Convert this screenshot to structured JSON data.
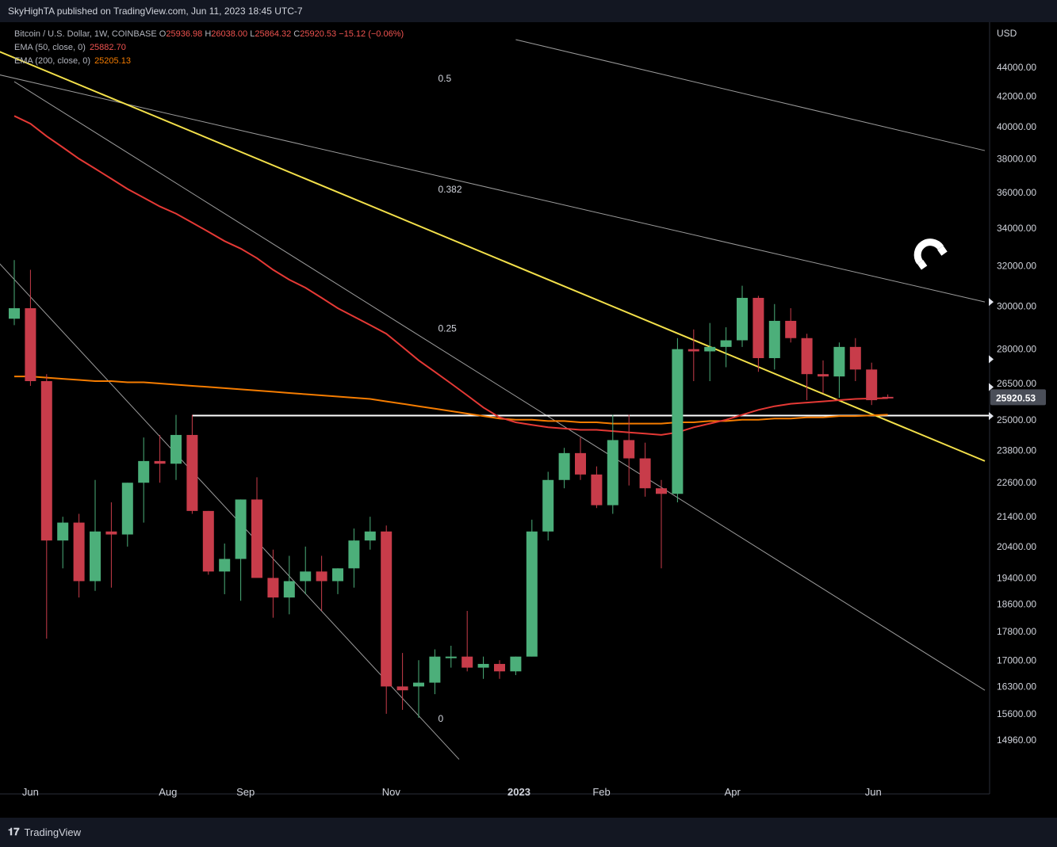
{
  "header": {
    "publisher_line": "SkyHighTA published on TradingView.com, Jun 11, 2023 18:45 UTC-7"
  },
  "legend": {
    "symbol": "Bitcoin / U.S. Dollar, 1W, COINBASE",
    "open_label": "O",
    "open": "25936.98",
    "high_label": "H",
    "high": "26038.00",
    "low_label": "L",
    "low": "25864.32",
    "close_label": "C",
    "close": "25920.53",
    "change": "−15.12 (−0.06%)",
    "ema50_label": "EMA (50, close, 0)",
    "ema50_value": "25882.70",
    "ema200_label": "EMA (200, close, 0)",
    "ema200_value": "25205.13"
  },
  "footer": {
    "brand": "TradingView",
    "logo_icon": "tradingview-logo-icon"
  },
  "colors": {
    "up": "#4caf7a",
    "down": "#c83c4a",
    "ema50": "#e53935",
    "ema200": "#f57c00",
    "trend": "#f3e04a",
    "grid_line": "#cfcfcf",
    "support": "#ffffff"
  },
  "chart_data": {
    "type": "candlestick",
    "currency": "USD",
    "y_scale": "log",
    "ylim": [
      14500,
      45500
    ],
    "y_ticks": [
      "44000.00",
      "42000.00",
      "40000.00",
      "38000.00",
      "36000.00",
      "34000.00",
      "32000.00",
      "30000.00",
      "28000.00",
      "26500.00",
      "25000.00",
      "23800.00",
      "22600.00",
      "21400.00",
      "20400.00",
      "19400.00",
      "18600.00",
      "17800.00",
      "17000.00",
      "16300.00",
      "15600.00",
      "14960.00"
    ],
    "y_tick_values": [
      44000,
      42000,
      40000,
      38000,
      36000,
      34000,
      32000,
      30000,
      28000,
      26500,
      25000,
      23800,
      22600,
      21400,
      20400,
      19400,
      18600,
      17800,
      17000,
      16300,
      15600,
      14960
    ],
    "x_ticks": [
      {
        "label": "Jun",
        "index": 1
      },
      {
        "label": "Aug",
        "index": 9.5
      },
      {
        "label": "Sep",
        "index": 14.3
      },
      {
        "label": "Nov",
        "index": 23.3
      },
      {
        "label": "2023",
        "index": 31.2,
        "bold": true
      },
      {
        "label": "Feb",
        "index": 36.3
      },
      {
        "label": "Apr",
        "index": 44.4
      },
      {
        "label": "Jun",
        "index": 53.1
      }
    ],
    "candles": [
      {
        "o": 29400,
        "h": 32300,
        "l": 29100,
        "c": 29900
      },
      {
        "o": 29900,
        "h": 31800,
        "l": 26400,
        "c": 26600
      },
      {
        "o": 26600,
        "h": 26900,
        "l": 17600,
        "c": 20600
      },
      {
        "o": 20600,
        "h": 21400,
        "l": 19700,
        "c": 21200
      },
      {
        "o": 21200,
        "h": 21500,
        "l": 18800,
        "c": 19300
      },
      {
        "o": 19300,
        "h": 22700,
        "l": 19000,
        "c": 20900
      },
      {
        "o": 20900,
        "h": 21900,
        "l": 19100,
        "c": 20800
      },
      {
        "o": 20800,
        "h": 22600,
        "l": 20400,
        "c": 22600
      },
      {
        "o": 22600,
        "h": 24300,
        "l": 21200,
        "c": 23400
      },
      {
        "o": 23400,
        "h": 24400,
        "l": 22600,
        "c": 23300
      },
      {
        "o": 23300,
        "h": 25200,
        "l": 22700,
        "c": 24400
      },
      {
        "o": 24400,
        "h": 25200,
        "l": 21500,
        "c": 21600
      },
      {
        "o": 21600,
        "h": 21600,
        "l": 19500,
        "c": 19600
      },
      {
        "o": 19600,
        "h": 20500,
        "l": 18900,
        "c": 20000
      },
      {
        "o": 20000,
        "h": 22000,
        "l": 18700,
        "c": 22000
      },
      {
        "o": 22000,
        "h": 22800,
        "l": 19500,
        "c": 19400
      },
      {
        "o": 19400,
        "h": 20300,
        "l": 18200,
        "c": 18800
      },
      {
        "o": 18800,
        "h": 20100,
        "l": 18300,
        "c": 19300
      },
      {
        "o": 19300,
        "h": 20400,
        "l": 18900,
        "c": 19600
      },
      {
        "o": 19600,
        "h": 20100,
        "l": 18400,
        "c": 19300
      },
      {
        "o": 19300,
        "h": 19700,
        "l": 18900,
        "c": 19700
      },
      {
        "o": 19700,
        "h": 21000,
        "l": 19100,
        "c": 20600
      },
      {
        "o": 20600,
        "h": 21400,
        "l": 20300,
        "c": 20900
      },
      {
        "o": 20900,
        "h": 21100,
        "l": 15600,
        "c": 16300
      },
      {
        "o": 16300,
        "h": 17200,
        "l": 15700,
        "c": 16200
      },
      {
        "o": 16300,
        "h": 17000,
        "l": 15500,
        "c": 16400
      },
      {
        "o": 16400,
        "h": 17300,
        "l": 16100,
        "c": 17100
      },
      {
        "o": 17100,
        "h": 17400,
        "l": 16800,
        "c": 17100
      },
      {
        "o": 17100,
        "h": 18400,
        "l": 16700,
        "c": 16800
      },
      {
        "o": 16800,
        "h": 17100,
        "l": 16500,
        "c": 16900
      },
      {
        "o": 16900,
        "h": 17000,
        "l": 16500,
        "c": 16700
      },
      {
        "o": 16700,
        "h": 17100,
        "l": 16600,
        "c": 17100
      },
      {
        "o": 17100,
        "h": 21300,
        "l": 17100,
        "c": 20900
      },
      {
        "o": 20900,
        "h": 23000,
        "l": 20600,
        "c": 22700
      },
      {
        "o": 22700,
        "h": 23900,
        "l": 22400,
        "c": 23700
      },
      {
        "o": 23700,
        "h": 24300,
        "l": 22700,
        "c": 22900
      },
      {
        "o": 22900,
        "h": 23200,
        "l": 21700,
        "c": 21800
      },
      {
        "o": 21800,
        "h": 25200,
        "l": 21500,
        "c": 24200
      },
      {
        "o": 24200,
        "h": 25200,
        "l": 22500,
        "c": 23500
      },
      {
        "o": 23500,
        "h": 24100,
        "l": 22100,
        "c": 22400
      },
      {
        "o": 22400,
        "h": 22700,
        "l": 19700,
        "c": 22200
      },
      {
        "o": 22200,
        "h": 28500,
        "l": 21900,
        "c": 28000
      },
      {
        "o": 28000,
        "h": 28900,
        "l": 26600,
        "c": 27900
      },
      {
        "o": 27900,
        "h": 29200,
        "l": 26600,
        "c": 28100
      },
      {
        "o": 28100,
        "h": 29000,
        "l": 27200,
        "c": 28400
      },
      {
        "o": 28400,
        "h": 31000,
        "l": 28100,
        "c": 30400
      },
      {
        "o": 30400,
        "h": 30500,
        "l": 27000,
        "c": 27600
      },
      {
        "o": 27600,
        "h": 30100,
        "l": 27100,
        "c": 29300
      },
      {
        "o": 29300,
        "h": 29900,
        "l": 28300,
        "c": 28500
      },
      {
        "o": 28500,
        "h": 28700,
        "l": 25800,
        "c": 26900
      },
      {
        "o": 26900,
        "h": 27500,
        "l": 26100,
        "c": 26800
      },
      {
        "o": 26800,
        "h": 28300,
        "l": 25900,
        "c": 28100
      },
      {
        "o": 28100,
        "h": 28500,
        "l": 26600,
        "c": 27100
      },
      {
        "o": 27100,
        "h": 27400,
        "l": 25600,
        "c": 25800
      },
      {
        "o": 25937,
        "h": 26038,
        "l": 25864,
        "c": 25921
      }
    ],
    "ema50": [
      40700,
      40200,
      39400,
      38700,
      38000,
      37400,
      36800,
      36200,
      35700,
      35200,
      34800,
      34300,
      33800,
      33300,
      32900,
      32400,
      31800,
      31300,
      30900,
      30400,
      29900,
      29500,
      29100,
      28700,
      28100,
      27500,
      27000,
      26500,
      26000,
      25500,
      25100,
      24900,
      24800,
      24700,
      24650,
      24600,
      24600,
      24550,
      24500,
      24450,
      24400,
      24500,
      24700,
      24850,
      25000,
      25200,
      25400,
      25550,
      25650,
      25700,
      25750,
      25800,
      25850,
      25870,
      25882.7
    ],
    "ema200": [
      26800,
      26800,
      26750,
      26700,
      26650,
      26600,
      26600,
      26550,
      26550,
      26500,
      26450,
      26400,
      26350,
      26300,
      26250,
      26200,
      26150,
      26100,
      26050,
      26000,
      25950,
      25900,
      25850,
      25750,
      25650,
      25550,
      25450,
      25350,
      25250,
      25150,
      25050,
      25000,
      25000,
      24950,
      24950,
      24900,
      24900,
      24850,
      24850,
      24850,
      24850,
      24900,
      24900,
      24950,
      24950,
      25000,
      25000,
      25050,
      25050,
      25100,
      25100,
      25150,
      25150,
      25180,
      25205.13
    ],
    "trend_line": {
      "from": [
        -2.7,
        46000
      ],
      "to": [
        60,
        23400
      ]
    },
    "support_level": {
      "price": 25170,
      "from_index": 11
    },
    "channel_lines": [
      {
        "from": [
          31,
          46000
        ],
        "to": [
          60,
          38500
        ]
      },
      {
        "from": [
          -1,
          43500
        ],
        "to": [
          60,
          30200
        ]
      },
      {
        "from": [
          -1,
          32200
        ],
        "to": [
          27.5,
          14500
        ]
      },
      {
        "from": [
          0,
          43000
        ],
        "to": [
          60,
          16200
        ]
      }
    ],
    "fib_labels": [
      {
        "text": "0.5",
        "index": 26.2,
        "price": 43000
      },
      {
        "text": "0.382",
        "index": 26.2,
        "price": 36000
      },
      {
        "text": "0.25",
        "index": 26.2,
        "price": 28800
      },
      {
        "text": "0",
        "index": 26.2,
        "price": 15400
      }
    ],
    "price_tags": [
      {
        "price": 30200
      },
      {
        "price": 27550
      },
      {
        "price": 26350
      },
      {
        "price": 25150
      }
    ],
    "last_price_label": "25920.53",
    "last_price": 25920.53,
    "magnet_icon": "magnet-icon"
  }
}
